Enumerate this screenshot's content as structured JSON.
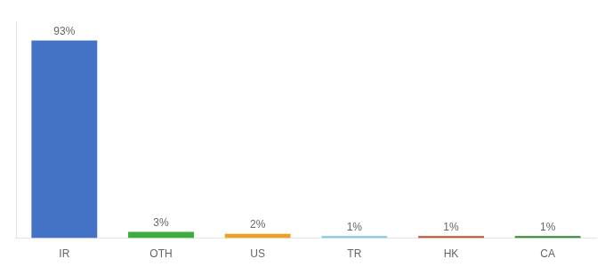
{
  "chart_data": {
    "type": "bar",
    "categories": [
      "IR",
      "OTH",
      "US",
      "TR",
      "HK",
      "CA"
    ],
    "values": [
      93,
      3,
      2,
      1,
      1,
      1
    ],
    "value_labels": [
      "93%",
      "3%",
      "2%",
      "1%",
      "1%",
      "1%"
    ],
    "data_labels": true,
    "colors": [
      "#4472c4",
      "#3dab3d",
      "#f0a020",
      "#7ec8e3",
      "#c0522a",
      "#2e8b2e"
    ],
    "ylim": [
      0,
      102
    ],
    "tick_labels": "x",
    "grid": false
  }
}
